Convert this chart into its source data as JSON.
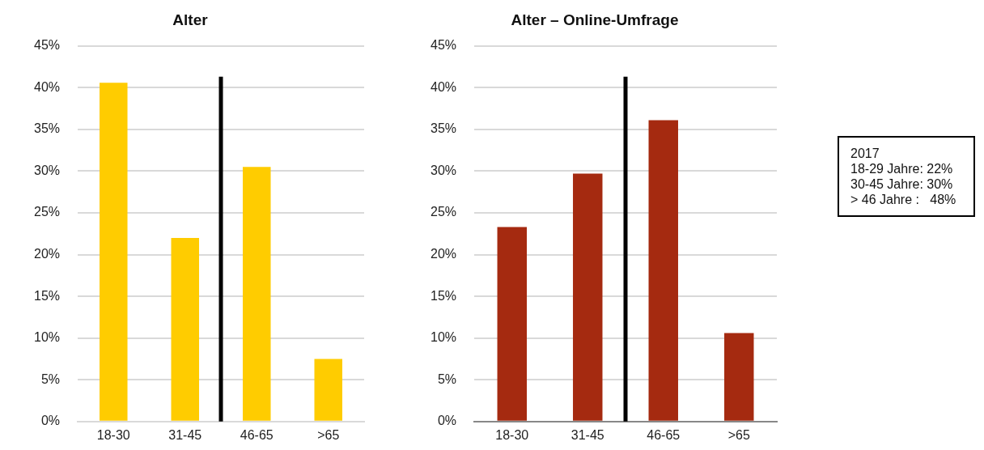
{
  "chart_data": [
    {
      "type": "bar",
      "title": "Alter",
      "categories": [
        "18-30",
        "31-45",
        "46-65",
        ">65"
      ],
      "values": [
        40.6,
        22,
        30.5,
        7.5
      ],
      "color": "#ffcc00",
      "ylim": [
        0,
        45
      ],
      "yticks": [
        {
          "value": 0,
          "label": "0%"
        },
        {
          "value": 5,
          "label": "5%"
        },
        {
          "value": 10,
          "label": "10%"
        },
        {
          "value": 15,
          "label": "15%"
        },
        {
          "value": 20,
          "label": "20%"
        },
        {
          "value": 25,
          "label": "25%"
        },
        {
          "value": 30,
          "label": "30%"
        },
        {
          "value": 35,
          "label": "35%"
        },
        {
          "value": 40,
          "label": "40%"
        },
        {
          "value": 45,
          "label": "45%"
        }
      ],
      "grid": "y",
      "legend": false,
      "ref_lines": [
        {
          "axis": "x",
          "value": "46-65",
          "color": "#000000"
        }
      ]
    },
    {
      "type": "bar",
      "title": "Alter – Online-Umfrage",
      "categories": [
        "18-30",
        "31-45",
        "46-65",
        ">65"
      ],
      "values": [
        23.3,
        29.7,
        36.1,
        10.6
      ],
      "color": "#a52a10",
      "ylim": [
        0,
        45
      ],
      "yticks": [
        {
          "value": 0,
          "label": "0%"
        },
        {
          "value": 5,
          "label": "5%"
        },
        {
          "value": 10,
          "label": "10%"
        },
        {
          "value": 15,
          "label": "15%"
        },
        {
          "value": 20,
          "label": "20%"
        },
        {
          "value": 25,
          "label": "25%"
        },
        {
          "value": 30,
          "label": "30%"
        },
        {
          "value": 35,
          "label": "35%"
        },
        {
          "value": 40,
          "label": "40%"
        },
        {
          "value": 45,
          "label": "45%"
        }
      ],
      "grid": "y",
      "legend": false,
      "ref_lines": [
        {
          "axis": "x",
          "value": "46-65",
          "color": "#000000"
        }
      ]
    },
    {
      "type": "other",
      "annotations": [
        "2017",
        "18-29 Jahre: 22%",
        "30-45 Jahre: 30%",
        "> 46 Jahre :   48%"
      ]
    }
  ]
}
